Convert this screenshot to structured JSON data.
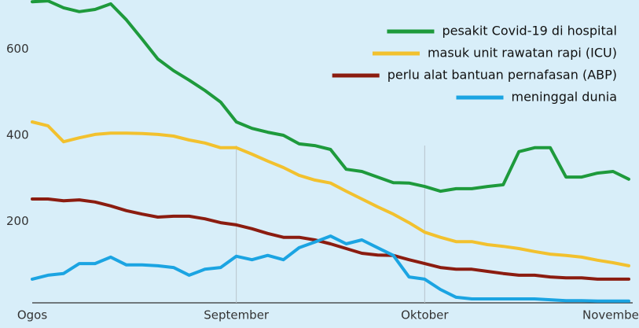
{
  "chart_data": {
    "type": "line",
    "categories": [
      "Ogos",
      null,
      null,
      null,
      null,
      null,
      null,
      null,
      null,
      null,
      null,
      null,
      null,
      "September",
      null,
      null,
      null,
      null,
      null,
      null,
      null,
      null,
      null,
      null,
      null,
      "Oktober",
      null,
      null,
      null,
      null,
      null,
      null,
      null,
      null,
      null,
      null,
      null,
      "November",
      null
    ],
    "series": [
      {
        "name": "pesakit Covid-19 di hospital",
        "color": "#1e9a3c",
        "values": [
          710,
          712,
          696,
          687,
          692,
          705,
          668,
          623,
          577,
          550,
          528,
          504,
          477,
          431,
          416,
          407,
          400,
          380,
          376,
          367,
          321,
          316,
          303,
          290,
          289,
          281,
          270,
          276,
          276,
          281,
          285,
          362,
          371,
          371,
          303,
          303,
          312,
          316,
          298
        ]
      },
      {
        "name": "masuk unit rawatan rapi (ICU)",
        "color": "#f2c12e",
        "values": [
          431,
          422,
          385,
          394,
          402,
          405,
          405,
          404,
          402,
          398,
          389,
          382,
          371,
          371,
          356,
          340,
          325,
          307,
          296,
          289,
          270,
          252,
          234,
          217,
          197,
          175,
          163,
          153,
          153,
          146,
          142,
          137,
          130,
          124,
          121,
          117,
          110,
          104,
          97
        ]
      },
      {
        "name": "perlu alat bantuan pernafasan (ABP)",
        "color": "#8b1c10",
        "values": [
          252,
          252,
          248,
          250,
          245,
          236,
          225,
          217,
          210,
          212,
          212,
          206,
          197,
          192,
          183,
          172,
          163,
          163,
          157,
          148,
          137,
          126,
          122,
          121,
          111,
          102,
          93,
          89,
          89,
          84,
          79,
          75,
          75,
          71,
          69,
          69,
          66,
          66,
          66
        ]
      },
      {
        "name": "meninggal dunia",
        "color": "#1ba4e2",
        "values": [
          66,
          75,
          79,
          102,
          102,
          117,
          99,
          99,
          97,
          93,
          75,
          89,
          93,
          119,
          111,
          121,
          111,
          139,
          152,
          166,
          148,
          157,
          139,
          121,
          71,
          66,
          42,
          24,
          20,
          20,
          20,
          20,
          20,
          18,
          16,
          16,
          15,
          15,
          15
        ]
      }
    ],
    "ylim": [
      0,
      714
    ],
    "yticks": [
      200,
      400,
      600
    ],
    "legend": "top-right"
  }
}
